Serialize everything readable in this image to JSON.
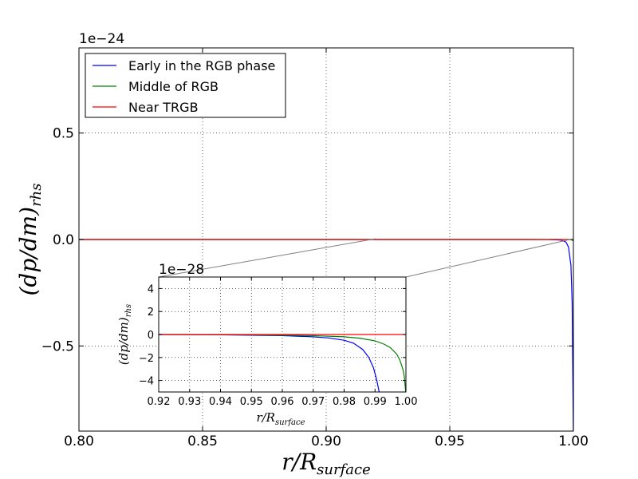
{
  "chart_data": [
    {
      "type": "line",
      "role": "main",
      "xlabel": "r/R_surface",
      "ylabel": "(dp/dm)_rhs",
      "offset_text": "1e−24",
      "xlim": [
        0.8,
        1.0
      ],
      "ylim": [
        -0.9,
        0.9
      ],
      "y_scale_exponent": -24,
      "grid": true,
      "legend_placement": "top-left",
      "x_ticks": [
        0.8,
        0.85,
        0.9,
        0.95,
        1.0
      ],
      "x_tick_labels": [
        "0.80",
        "0.85",
        "0.90",
        "0.95",
        "1.00"
      ],
      "y_ticks": [
        0.5,
        0.0,
        -0.5
      ],
      "y_tick_labels": [
        "0.5",
        "0.0",
        "−0.5"
      ],
      "series": [
        {
          "name": "Early in the RGB phase",
          "color": "#0000ff",
          "x": [
            0.8,
            0.9,
            0.98,
            0.99,
            0.995,
            0.997,
            0.998,
            0.999,
            0.9995,
            1.0
          ],
          "y": [
            0.0,
            0.0,
            0.0,
            -0.0003,
            -0.003,
            -0.012,
            -0.035,
            -0.12,
            -0.3,
            -0.95
          ]
        },
        {
          "name": "Middle of RGB",
          "color": "#008000",
          "x": [
            0.8,
            0.9,
            0.99,
            0.999,
            1.0
          ],
          "y": [
            0.0,
            0.0,
            0.0,
            -0.0005,
            -0.006
          ]
        },
        {
          "name": "Near TRGB",
          "color": "#ff0000",
          "x": [
            0.8,
            0.9,
            1.0
          ],
          "y": [
            0.0,
            0.0,
            0.0
          ]
        }
      ]
    },
    {
      "type": "line",
      "role": "inset",
      "xlabel": "r/R_surface",
      "ylabel": "(dp/dm)_rhs",
      "offset_text": "1e−28",
      "xlim": [
        0.92,
        1.0
      ],
      "ylim": [
        -5,
        5
      ],
      "y_scale_exponent": -28,
      "grid": true,
      "x_ticks": [
        0.92,
        0.93,
        0.94,
        0.95,
        0.96,
        0.97,
        0.98,
        0.99,
        1.0
      ],
      "x_tick_labels": [
        "0.92",
        "0.93",
        "0.94",
        "0.95",
        "0.96",
        "0.97",
        "0.98",
        "0.99",
        "1.00"
      ],
      "y_ticks": [
        4,
        2,
        0,
        -2,
        -4
      ],
      "y_tick_labels": [
        "4",
        "2",
        "0",
        "−2",
        "−4"
      ],
      "series": [
        {
          "name": "Early in the RGB phase",
          "color": "#0000ff",
          "x": [
            0.92,
            0.94,
            0.96,
            0.97,
            0.975,
            0.98,
            0.983,
            0.986,
            0.988,
            0.9895,
            0.9905,
            0.9915
          ],
          "y": [
            0.0,
            -0.03,
            -0.1,
            -0.2,
            -0.3,
            -0.5,
            -0.75,
            -1.3,
            -2.0,
            -2.9,
            -3.9,
            -5.2
          ]
        },
        {
          "name": "Middle of RGB",
          "color": "#008000",
          "x": [
            0.92,
            0.95,
            0.97,
            0.98,
            0.985,
            0.99,
            0.993,
            0.995,
            0.997,
            0.998,
            0.999,
            0.9995,
            1.0
          ],
          "y": [
            0.0,
            -0.02,
            -0.1,
            -0.2,
            -0.32,
            -0.55,
            -0.85,
            -1.15,
            -1.7,
            -2.2,
            -3.0,
            -3.7,
            -5.2
          ]
        },
        {
          "name": "Near TRGB",
          "color": "#ff0000",
          "x": [
            0.92,
            0.96,
            1.0
          ],
          "y": [
            0.0,
            0.0,
            0.0
          ]
        }
      ]
    }
  ]
}
